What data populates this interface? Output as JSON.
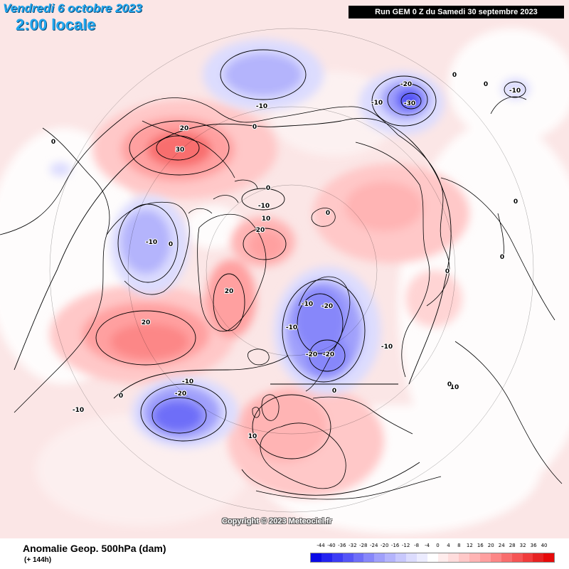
{
  "header": {
    "date_title": "Vendredi 6 octobre 2023",
    "time_title": "2:00 locale",
    "run_info": "Run GEM 0 Z du Samedi 30 septembre 2023"
  },
  "copyright": "Copyright © 2023 Meteociel.fr",
  "footer": {
    "variable_title": "Anomalie Geop. 500hPa (dam)",
    "lead_time": "(+ 144h)"
  },
  "colorbar": {
    "labels": [
      "-44",
      "-40",
      "-36",
      "-32",
      "-28",
      "-24",
      "-20",
      "-16",
      "-12",
      "-8",
      "-4",
      "0",
      "4",
      "8",
      "12",
      "16",
      "20",
      "24",
      "28",
      "32",
      "36",
      "40"
    ],
    "colors": [
      "#0a0ae6",
      "#2323f0",
      "#3c3cf5",
      "#5555f7",
      "#6e6ef8",
      "#8787fa",
      "#a0a0fb",
      "#b4b4fc",
      "#c8c8fd",
      "#dcdcfe",
      "#ececff",
      "#ffffff",
      "#ffecec",
      "#ffdcdc",
      "#ffc8c8",
      "#ffb4b4",
      "#ffa0a0",
      "#fc8787",
      "#f86e6e",
      "#f55555",
      "#f03c3c",
      "#e62323",
      "#e60a0a"
    ]
  },
  "map": {
    "projection": "polar stereographic, North Pole",
    "contour_labels": [
      {
        "text": "30",
        "sign": "positive"
      },
      {
        "text": "20",
        "sign": "positive"
      },
      {
        "text": "0",
        "sign": "zero"
      },
      {
        "text": "-10",
        "sign": "negative"
      },
      {
        "text": "-10",
        "sign": "negative"
      },
      {
        "text": "-20",
        "sign": "negative"
      },
      {
        "text": "-30",
        "sign": "negative"
      },
      {
        "text": "-10",
        "sign": "negative"
      },
      {
        "text": "0",
        "sign": "zero"
      },
      {
        "text": "0",
        "sign": "zero"
      },
      {
        "text": "-10",
        "sign": "negative"
      },
      {
        "text": "0",
        "sign": "zero"
      },
      {
        "text": "10",
        "sign": "positive"
      },
      {
        "text": "20",
        "sign": "positive"
      },
      {
        "text": "-10",
        "sign": "negative"
      },
      {
        "text": "0",
        "sign": "zero"
      },
      {
        "text": "20",
        "sign": "positive"
      },
      {
        "text": "20",
        "sign": "positive"
      },
      {
        "text": "-10",
        "sign": "negative"
      },
      {
        "text": "-20",
        "sign": "negative"
      },
      {
        "text": "-10",
        "sign": "negative"
      },
      {
        "text": "-20",
        "sign": "negative"
      },
      {
        "text": "-20",
        "sign": "negative"
      },
      {
        "text": "-10",
        "sign": "negative"
      },
      {
        "text": "0",
        "sign": "zero"
      },
      {
        "text": "-10",
        "sign": "negative"
      },
      {
        "text": "-20",
        "sign": "negative"
      },
      {
        "text": "0",
        "sign": "zero"
      },
      {
        "text": "-10",
        "sign": "negative"
      },
      {
        "text": "10",
        "sign": "positive"
      },
      {
        "text": "0",
        "sign": "zero"
      },
      {
        "text": "0",
        "sign": "zero"
      },
      {
        "text": "0",
        "sign": "zero"
      },
      {
        "text": "0",
        "sign": "zero"
      },
      {
        "text": "10",
        "sign": "positive"
      },
      {
        "text": "0",
        "sign": "zero"
      },
      {
        "text": "0",
        "sign": "zero"
      }
    ]
  }
}
